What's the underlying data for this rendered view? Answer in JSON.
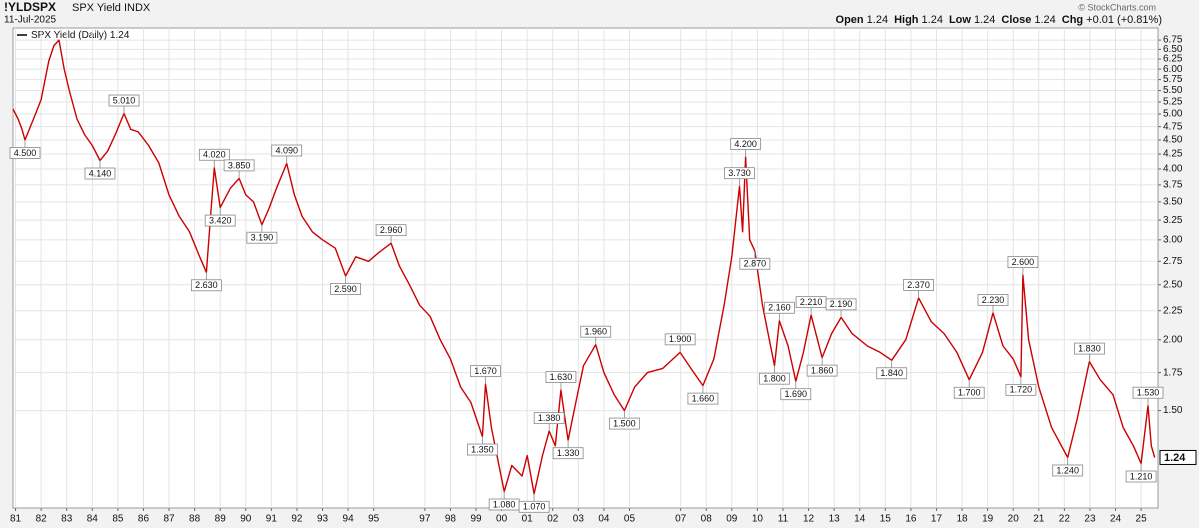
{
  "header": {
    "symbol": "!YLDSPX",
    "name": "SPX Yield INDX",
    "date": "11-Jul-2025",
    "copyright": "© StockCharts.com",
    "quote": [
      {
        "label": "Open",
        "value": "1.24"
      },
      {
        "label": "High",
        "value": "1.24"
      },
      {
        "label": "Low",
        "value": "1.24"
      },
      {
        "label": "Close",
        "value": "1.24"
      },
      {
        "label": "Chg",
        "value": "+0.01 (+0.81%)"
      }
    ]
  },
  "chart_data": {
    "type": "line",
    "log_scale": true,
    "grid": true,
    "last": 1.24,
    "xlim": [
      1980.9,
      2025.66
    ],
    "ylim": [
      1.01,
      7.09
    ],
    "xticks": [
      {
        "value": 1981,
        "label": "81"
      },
      {
        "value": 1982,
        "label": "82"
      },
      {
        "value": 1983,
        "label": "83"
      },
      {
        "value": 1984,
        "label": "84"
      },
      {
        "value": 1985,
        "label": "85"
      },
      {
        "value": 1986,
        "label": "86"
      },
      {
        "value": 1987,
        "label": "87"
      },
      {
        "value": 1988,
        "label": "88"
      },
      {
        "value": 1989,
        "label": "89"
      },
      {
        "value": 1990,
        "label": "90"
      },
      {
        "value": 1991,
        "label": "91"
      },
      {
        "value": 1992,
        "label": "92"
      },
      {
        "value": 1993,
        "label": "93"
      },
      {
        "value": 1994,
        "label": "94"
      },
      {
        "value": 1995,
        "label": "95"
      },
      {
        "value": 1997,
        "label": "97"
      },
      {
        "value": 1998,
        "label": "98"
      },
      {
        "value": 1999,
        "label": "99"
      },
      {
        "value": 2000,
        "label": "00"
      },
      {
        "value": 2001,
        "label": "01"
      },
      {
        "value": 2002,
        "label": "02"
      },
      {
        "value": 2003,
        "label": "03"
      },
      {
        "value": 2004,
        "label": "04"
      },
      {
        "value": 2005,
        "label": "05"
      },
      {
        "value": 2007,
        "label": "07"
      },
      {
        "value": 2008,
        "label": "08"
      },
      {
        "value": 2009,
        "label": "09"
      },
      {
        "value": 2010,
        "label": "10"
      },
      {
        "value": 2011,
        "label": "11"
      },
      {
        "value": 2012,
        "label": "12"
      },
      {
        "value": 2013,
        "label": "13"
      },
      {
        "value": 2014,
        "label": "14"
      },
      {
        "value": 2015,
        "label": "15"
      },
      {
        "value": 2016,
        "label": "16"
      },
      {
        "value": 2017,
        "label": "17"
      },
      {
        "value": 2018,
        "label": "18"
      },
      {
        "value": 2019,
        "label": "19"
      },
      {
        "value": 2020,
        "label": "20"
      },
      {
        "value": 2021,
        "label": "21"
      },
      {
        "value": 2022,
        "label": "22"
      },
      {
        "value": 2023,
        "label": "23"
      },
      {
        "value": 2024,
        "label": "24"
      },
      {
        "value": 2025,
        "label": "25"
      }
    ],
    "yticks": [
      {
        "value": 1.5,
        "label": "1.50"
      },
      {
        "value": 1.75,
        "label": "1.75"
      },
      {
        "value": 2,
        "label": "2.00"
      },
      {
        "value": 2.25,
        "label": "2.25"
      },
      {
        "value": 2.5,
        "label": "2.50"
      },
      {
        "value": 2.75,
        "label": "2.75"
      },
      {
        "value": 3,
        "label": "3.00"
      },
      {
        "value": 3.25,
        "label": "3.25"
      },
      {
        "value": 3.5,
        "label": "3.50"
      },
      {
        "value": 3.75,
        "label": "3.75"
      },
      {
        "value": 4,
        "label": "4.00"
      },
      {
        "value": 4.25,
        "label": "4.25"
      },
      {
        "value": 4.5,
        "label": "4.50"
      },
      {
        "value": 4.75,
        "label": "4.75"
      },
      {
        "value": 5,
        "label": "5.00"
      },
      {
        "value": 5.25,
        "label": "5.25"
      },
      {
        "value": 5.5,
        "label": "5.50"
      },
      {
        "value": 5.75,
        "label": "5.75"
      },
      {
        "value": 6,
        "label": "6.00"
      },
      {
        "value": 6.25,
        "label": "6.25"
      },
      {
        "value": 6.5,
        "label": "6.50"
      },
      {
        "value": 6.75,
        "label": "6.75"
      }
    ],
    "series": [
      {
        "name": "SPX Yield (Daily)",
        "color": "#cc0000",
        "x": [
          1980.9,
          1981.1,
          1981.25,
          1981.37,
          1981.7,
          1982.0,
          1982.3,
          1982.5,
          1982.7,
          1982.9,
          1983.1,
          1983.4,
          1983.7,
          1984.0,
          1984.3,
          1984.6,
          1984.9,
          1985.24,
          1985.5,
          1985.8,
          1986.2,
          1986.6,
          1987.0,
          1987.4,
          1987.8,
          1988.2,
          1988.46,
          1988.6,
          1988.77,
          1989.0,
          1989.4,
          1989.74,
          1990.0,
          1990.3,
          1990.63,
          1990.9,
          1991.2,
          1991.6,
          1991.9,
          1992.2,
          1992.6,
          1993.0,
          1993.5,
          1993.9,
          1994.3,
          1994.8,
          1995.2,
          1995.68,
          1996.0,
          1996.4,
          1996.8,
          1997.2,
          1997.6,
          1998.0,
          1998.4,
          1998.8,
          1999.25,
          1999.37,
          1999.6,
          1999.9,
          2000.1,
          2000.4,
          2000.8,
          2001.0,
          2001.27,
          2001.6,
          2001.86,
          2002.1,
          2002.32,
          2002.6,
          2002.9,
          2003.2,
          2003.68,
          2004.0,
          2004.4,
          2004.8,
          2005.2,
          2005.7,
          2006.3,
          2006.98,
          2007.4,
          2007.87,
          2008.3,
          2008.7,
          2009.0,
          2009.3,
          2009.42,
          2009.54,
          2009.7,
          2009.9,
          2010.2,
          2010.67,
          2010.86,
          2011.2,
          2011.5,
          2011.8,
          2012.1,
          2012.53,
          2012.9,
          2013.27,
          2013.7,
          2014.3,
          2014.8,
          2015.25,
          2015.8,
          2016.3,
          2016.8,
          2017.3,
          2017.8,
          2018.28,
          2018.8,
          2019.21,
          2019.6,
          2020.0,
          2020.3,
          2020.38,
          2020.6,
          2021.0,
          2021.5,
          2022.13,
          2022.5,
          2022.98,
          2023.4,
          2023.9,
          2024.3,
          2024.7,
          2025.0,
          2025.27,
          2025.4,
          2025.53
        ],
        "values": [
          5.1,
          4.9,
          4.7,
          4.5,
          4.9,
          5.3,
          6.2,
          6.6,
          6.75,
          6.0,
          5.5,
          4.9,
          4.6,
          4.4,
          4.14,
          4.3,
          4.6,
          5.01,
          4.7,
          4.65,
          4.4,
          4.1,
          3.6,
          3.3,
          3.1,
          2.8,
          2.63,
          3.2,
          4.02,
          3.42,
          3.7,
          3.85,
          3.6,
          3.5,
          3.19,
          3.4,
          3.7,
          4.09,
          3.6,
          3.3,
          3.1,
          3.0,
          2.9,
          2.59,
          2.8,
          2.75,
          2.85,
          2.96,
          2.7,
          2.5,
          2.3,
          2.2,
          2.0,
          1.85,
          1.65,
          1.55,
          1.35,
          1.67,
          1.4,
          1.2,
          1.08,
          1.2,
          1.15,
          1.25,
          1.07,
          1.25,
          1.38,
          1.3,
          1.63,
          1.33,
          1.55,
          1.8,
          1.96,
          1.75,
          1.6,
          1.5,
          1.65,
          1.75,
          1.78,
          1.9,
          1.78,
          1.66,
          1.85,
          2.3,
          2.8,
          3.73,
          3.1,
          4.2,
          3.0,
          2.87,
          2.3,
          1.8,
          2.16,
          1.95,
          1.69,
          1.9,
          2.21,
          1.86,
          2.05,
          2.19,
          2.05,
          1.95,
          1.9,
          1.84,
          2.0,
          2.37,
          2.15,
          2.05,
          1.9,
          1.7,
          1.9,
          2.23,
          1.95,
          1.85,
          1.72,
          2.6,
          2.0,
          1.65,
          1.4,
          1.24,
          1.45,
          1.83,
          1.7,
          1.6,
          1.4,
          1.3,
          1.21,
          1.53,
          1.3,
          1.24
        ]
      }
    ],
    "annotations": [
      {
        "x": 1981.37,
        "value": 4.5,
        "label": "4.500"
      },
      {
        "x": 1984.3,
        "value": 4.14,
        "label": "4.140"
      },
      {
        "x": 1985.24,
        "value": 5.01,
        "label": "5.010"
      },
      {
        "x": 1988.46,
        "value": 2.63,
        "label": "2.630"
      },
      {
        "x": 1988.77,
        "value": 4.02,
        "label": "4.020"
      },
      {
        "x": 1989.0,
        "value": 3.42,
        "label": "3.420"
      },
      {
        "x": 1989.74,
        "value": 3.85,
        "label": "3.850"
      },
      {
        "x": 1990.63,
        "value": 3.19,
        "label": "3.190"
      },
      {
        "x": 1991.6,
        "value": 4.09,
        "label": "4.090"
      },
      {
        "x": 1993.9,
        "value": 2.59,
        "label": "2.590"
      },
      {
        "x": 1995.68,
        "value": 2.96,
        "label": "2.960"
      },
      {
        "x": 1999.25,
        "value": 1.35,
        "label": "1.350"
      },
      {
        "x": 1999.37,
        "value": 1.67,
        "label": "1.670"
      },
      {
        "x": 2000.1,
        "value": 1.08,
        "label": "1.080"
      },
      {
        "x": 2001.27,
        "value": 1.07,
        "label": "1.070"
      },
      {
        "x": 2001.86,
        "value": 1.38,
        "label": "1.380"
      },
      {
        "x": 2002.32,
        "value": 1.63,
        "label": "1.630"
      },
      {
        "x": 2002.6,
        "value": 1.33,
        "label": "1.330"
      },
      {
        "x": 2003.68,
        "value": 1.96,
        "label": "1.960"
      },
      {
        "x": 2004.8,
        "value": 1.5,
        "label": "1.500"
      },
      {
        "x": 2006.98,
        "value": 1.9,
        "label": "1.900"
      },
      {
        "x": 2007.87,
        "value": 1.66,
        "label": "1.660"
      },
      {
        "x": 2009.3,
        "value": 3.73,
        "label": "3.730"
      },
      {
        "x": 2009.54,
        "value": 4.2,
        "label": "4.200"
      },
      {
        "x": 2009.9,
        "value": 2.87,
        "label": "2.870"
      },
      {
        "x": 2010.67,
        "value": 1.8,
        "label": "1.800"
      },
      {
        "x": 2010.86,
        "value": 2.16,
        "label": "2.160"
      },
      {
        "x": 2011.5,
        "value": 1.69,
        "label": "1.690"
      },
      {
        "x": 2012.1,
        "value": 2.21,
        "label": "2.210"
      },
      {
        "x": 2012.53,
        "value": 1.86,
        "label": "1.860"
      },
      {
        "x": 2013.27,
        "value": 2.19,
        "label": "2.190"
      },
      {
        "x": 2015.25,
        "value": 1.84,
        "label": "1.840"
      },
      {
        "x": 2016.3,
        "value": 2.37,
        "label": "2.370"
      },
      {
        "x": 2018.28,
        "value": 1.7,
        "label": "1.700"
      },
      {
        "x": 2019.21,
        "value": 2.23,
        "label": "2.230"
      },
      {
        "x": 2020.3,
        "value": 1.72,
        "label": "1.720"
      },
      {
        "x": 2020.38,
        "value": 2.6,
        "label": "2.600"
      },
      {
        "x": 2022.13,
        "value": 1.24,
        "label": "1.240"
      },
      {
        "x": 2022.98,
        "value": 1.83,
        "label": "1.830"
      },
      {
        "x": 2025.0,
        "value": 1.21,
        "label": "1.210"
      },
      {
        "x": 2025.27,
        "value": 1.53,
        "label": "1.530"
      }
    ]
  }
}
